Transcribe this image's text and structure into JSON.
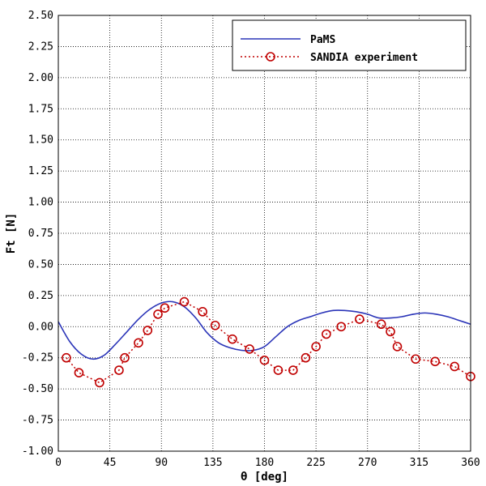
{
  "chart_data": {
    "type": "line",
    "xlabel": "θ [deg]",
    "ylabel": "Ft [N]",
    "xlim": [
      0,
      360
    ],
    "ylim": [
      -1.0,
      2.5
    ],
    "xticks": [
      "0",
      "45",
      "90",
      "135",
      "180",
      "225",
      "270",
      "315",
      "360"
    ],
    "yticks": [
      "-1.00",
      "-0.75",
      "-0.50",
      "-0.25",
      "0.00",
      "0.25",
      "0.50",
      "0.75",
      "1.00",
      "1.25",
      "1.50",
      "1.75",
      "2.00",
      "2.25",
      "2.50"
    ],
    "grid": true,
    "legend_position": "top-right",
    "series": [
      {
        "name": "PaMS",
        "style": "solid",
        "color": "#2b35b8",
        "x": [
          0,
          10,
          20,
          30,
          40,
          50,
          60,
          70,
          80,
          90,
          100,
          110,
          120,
          130,
          140,
          150,
          160,
          170,
          180,
          190,
          200,
          210,
          220,
          230,
          240,
          250,
          260,
          270,
          280,
          290,
          300,
          310,
          320,
          330,
          340,
          350,
          360
        ],
        "y": [
          0.04,
          -0.12,
          -0.22,
          -0.26,
          -0.23,
          -0.14,
          -0.04,
          0.06,
          0.14,
          0.19,
          0.2,
          0.16,
          0.07,
          -0.05,
          -0.13,
          -0.17,
          -0.19,
          -0.19,
          -0.16,
          -0.08,
          0.0,
          0.05,
          0.08,
          0.11,
          0.13,
          0.13,
          0.12,
          0.1,
          0.07,
          0.07,
          0.08,
          0.1,
          0.11,
          0.1,
          0.08,
          0.05,
          0.02
        ]
      },
      {
        "name": "SANDIA experiment",
        "style": "dotted-circles",
        "color": "#c00000",
        "x": [
          7,
          18,
          36,
          53,
          58,
          70,
          78,
          87,
          93,
          110,
          126,
          137,
          152,
          167,
          180,
          192,
          205,
          216,
          225,
          234,
          247,
          263,
          282,
          290,
          296,
          312,
          329,
          346,
          360
        ],
        "y": [
          -0.25,
          -0.37,
          -0.45,
          -0.35,
          -0.25,
          -0.13,
          -0.03,
          0.1,
          0.15,
          0.2,
          0.12,
          0.01,
          -0.1,
          -0.18,
          -0.27,
          -0.35,
          -0.35,
          -0.25,
          -0.16,
          -0.06,
          0.0,
          0.06,
          0.02,
          -0.04,
          -0.16,
          -0.26,
          -0.28,
          -0.32,
          -0.4
        ]
      }
    ]
  }
}
